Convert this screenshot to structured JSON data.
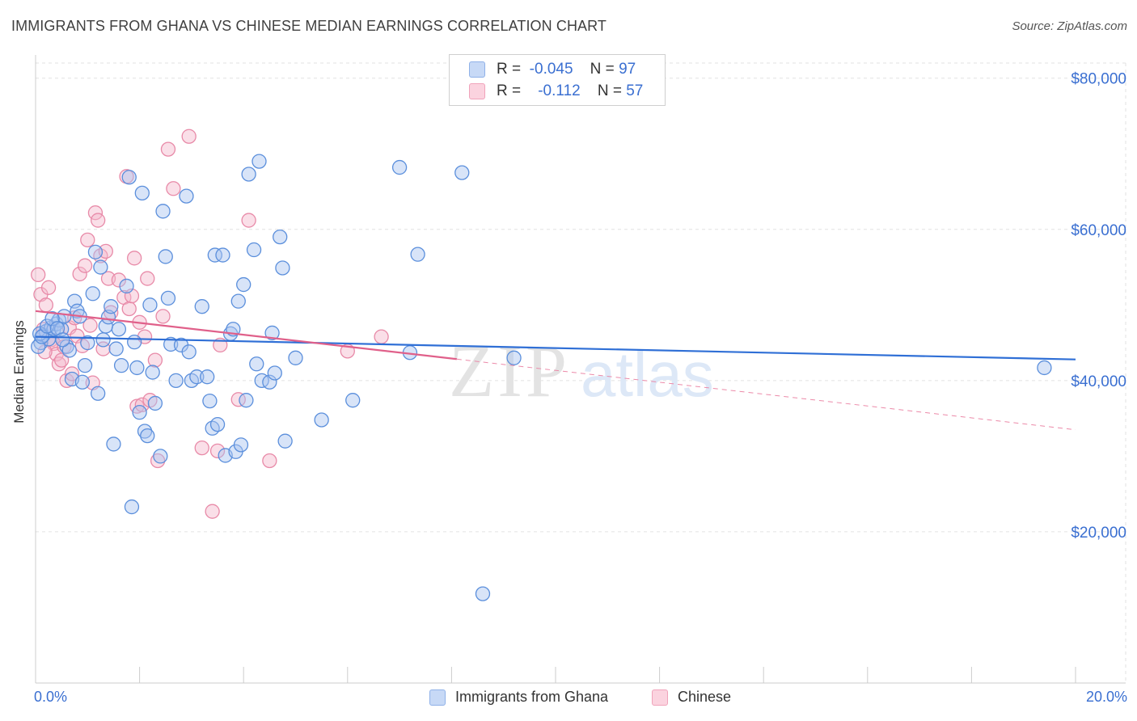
{
  "title": "IMMIGRANTS FROM GHANA VS CHINESE MEDIAN EARNINGS CORRELATION CHART",
  "source": "Source: ZipAtlas.com",
  "watermark": {
    "zip": "ZIP",
    "atlas": "atlas"
  },
  "legend": {
    "rows": [
      {
        "r_label": "R =",
        "r_value": "-0.045",
        "n_label": "N =",
        "n_value": "97",
        "color": "#a9c4f0"
      },
      {
        "r_label": "R =",
        "r_value": "-0.112",
        "n_label": "N =",
        "n_value": "57",
        "color": "#f5b8cb"
      }
    ]
  },
  "bottom_legend": [
    "Immigrants from Ghana",
    "Chinese"
  ],
  "chart_data": {
    "type": "scatter",
    "title": "IMMIGRANTS FROM GHANA VS CHINESE MEDIAN EARNINGS CORRELATION CHART",
    "xlabel": "",
    "ylabel": "Median Earnings",
    "xlim": [
      0,
      20
    ],
    "ylim": [
      0,
      82000
    ],
    "x_tick_labels": [
      "0.0%",
      "20.0%"
    ],
    "y_ticks": [
      20000,
      40000,
      60000,
      80000
    ],
    "y_tick_labels": [
      "$20,000",
      "$40,000",
      "$60,000",
      "$80,000"
    ],
    "grid": true,
    "series": [
      {
        "name": "Immigrants from Ghana",
        "color": "#5b8fdc",
        "fill": "#a9c4f0",
        "trend": {
          "x": [
            0,
            20
          ],
          "y": [
            45800,
            42800
          ]
        },
        "points": [
          [
            0.1,
            45000
          ],
          [
            0.15,
            46000
          ],
          [
            0.2,
            46500
          ],
          [
            0.25,
            45500
          ],
          [
            0.3,
            47000
          ],
          [
            0.35,
            46800
          ],
          [
            0.4,
            47500
          ],
          [
            0.45,
            48000
          ],
          [
            0.5,
            46800
          ],
          [
            0.55,
            48500
          ],
          [
            0.6,
            44500
          ],
          [
            0.65,
            44000
          ],
          [
            0.7,
            40200
          ],
          [
            0.75,
            50500
          ],
          [
            0.8,
            49200
          ],
          [
            0.85,
            48500
          ],
          [
            0.9,
            39800
          ],
          [
            0.95,
            42000
          ],
          [
            1.0,
            45000
          ],
          [
            1.1,
            51500
          ],
          [
            1.15,
            57000
          ],
          [
            1.2,
            38300
          ],
          [
            1.3,
            45400
          ],
          [
            1.35,
            47200
          ],
          [
            1.4,
            48400
          ],
          [
            1.45,
            49800
          ],
          [
            1.5,
            31600
          ],
          [
            1.55,
            44200
          ],
          [
            1.6,
            46800
          ],
          [
            1.65,
            42000
          ],
          [
            1.75,
            52500
          ],
          [
            1.8,
            66900
          ],
          [
            1.85,
            23300
          ],
          [
            1.9,
            45100
          ],
          [
            1.95,
            41700
          ],
          [
            2.0,
            35800
          ],
          [
            2.05,
            64800
          ],
          [
            2.1,
            33300
          ],
          [
            2.15,
            32700
          ],
          [
            2.2,
            50000
          ],
          [
            2.25,
            41100
          ],
          [
            2.3,
            37000
          ],
          [
            2.4,
            30000
          ],
          [
            2.45,
            62400
          ],
          [
            2.5,
            56400
          ],
          [
            2.55,
            50900
          ],
          [
            2.6,
            44800
          ],
          [
            2.7,
            40000
          ],
          [
            2.8,
            44700
          ],
          [
            2.9,
            64400
          ],
          [
            2.95,
            43800
          ],
          [
            3.0,
            40000
          ],
          [
            3.1,
            40500
          ],
          [
            3.2,
            49800
          ],
          [
            3.3,
            40500
          ],
          [
            3.35,
            37300
          ],
          [
            3.4,
            33700
          ],
          [
            3.45,
            56600
          ],
          [
            3.5,
            34200
          ],
          [
            3.6,
            56600
          ],
          [
            3.65,
            30100
          ],
          [
            3.75,
            46200
          ],
          [
            3.8,
            46800
          ],
          [
            3.85,
            30600
          ],
          [
            3.9,
            50500
          ],
          [
            3.95,
            31500
          ],
          [
            4.0,
            52700
          ],
          [
            4.05,
            37400
          ],
          [
            4.1,
            67300
          ],
          [
            4.2,
            57300
          ],
          [
            4.25,
            42200
          ],
          [
            4.3,
            69000
          ],
          [
            4.35,
            40000
          ],
          [
            4.5,
            39800
          ],
          [
            4.55,
            46300
          ],
          [
            4.6,
            41000
          ],
          [
            4.7,
            59000
          ],
          [
            4.75,
            54900
          ],
          [
            4.8,
            32000
          ],
          [
            5.0,
            43000
          ],
          [
            5.5,
            34800
          ],
          [
            6.1,
            37400
          ],
          [
            7.0,
            68200
          ],
          [
            7.2,
            43700
          ],
          [
            7.35,
            56700
          ],
          [
            8.2,
            67500
          ],
          [
            8.6,
            11800
          ],
          [
            9.2,
            43000
          ],
          [
            19.4,
            41700
          ],
          [
            0.05,
            44500
          ],
          [
            0.08,
            46200
          ],
          [
            0.12,
            45800
          ],
          [
            0.22,
            47200
          ],
          [
            0.32,
            48200
          ],
          [
            0.42,
            46900
          ],
          [
            0.52,
            45400
          ],
          [
            1.25,
            55000
          ]
        ]
      },
      {
        "name": "Chinese",
        "color": "#e88aa8",
        "fill": "#f5b8cb",
        "trend": {
          "x": [
            0,
            20
          ],
          "y": [
            49200,
            33500
          ],
          "solid_until": 8.1
        },
        "points": [
          [
            0.1,
            51400
          ],
          [
            0.15,
            46800
          ],
          [
            0.2,
            50000
          ],
          [
            0.25,
            52300
          ],
          [
            0.3,
            45400
          ],
          [
            0.35,
            44900
          ],
          [
            0.4,
            43500
          ],
          [
            0.45,
            42200
          ],
          [
            0.5,
            42700
          ],
          [
            0.55,
            44500
          ],
          [
            0.6,
            40000
          ],
          [
            0.65,
            47000
          ],
          [
            0.7,
            40900
          ],
          [
            0.75,
            48300
          ],
          [
            0.8,
            45900
          ],
          [
            0.85,
            54100
          ],
          [
            0.9,
            44600
          ],
          [
            0.95,
            55200
          ],
          [
            1.0,
            58600
          ],
          [
            1.05,
            47300
          ],
          [
            1.1,
            39700
          ],
          [
            1.15,
            62200
          ],
          [
            1.2,
            61200
          ],
          [
            1.25,
            56500
          ],
          [
            1.3,
            44200
          ],
          [
            1.35,
            57100
          ],
          [
            1.4,
            53500
          ],
          [
            1.45,
            49000
          ],
          [
            1.6,
            53300
          ],
          [
            1.7,
            51000
          ],
          [
            1.75,
            67000
          ],
          [
            1.8,
            49500
          ],
          [
            1.85,
            51200
          ],
          [
            1.9,
            56200
          ],
          [
            1.95,
            36600
          ],
          [
            2.0,
            47700
          ],
          [
            2.05,
            36800
          ],
          [
            2.1,
            45800
          ],
          [
            2.15,
            53500
          ],
          [
            2.2,
            37400
          ],
          [
            2.3,
            42700
          ],
          [
            2.35,
            29400
          ],
          [
            2.45,
            48500
          ],
          [
            2.55,
            70600
          ],
          [
            2.65,
            65400
          ],
          [
            2.95,
            72300
          ],
          [
            3.2,
            31100
          ],
          [
            3.4,
            22700
          ],
          [
            3.5,
            30700
          ],
          [
            3.55,
            44700
          ],
          [
            3.9,
            37500
          ],
          [
            4.1,
            61200
          ],
          [
            4.5,
            29400
          ],
          [
            6.0,
            43900
          ],
          [
            6.65,
            45800
          ],
          [
            0.05,
            54000
          ],
          [
            0.18,
            43800
          ]
        ]
      }
    ]
  }
}
